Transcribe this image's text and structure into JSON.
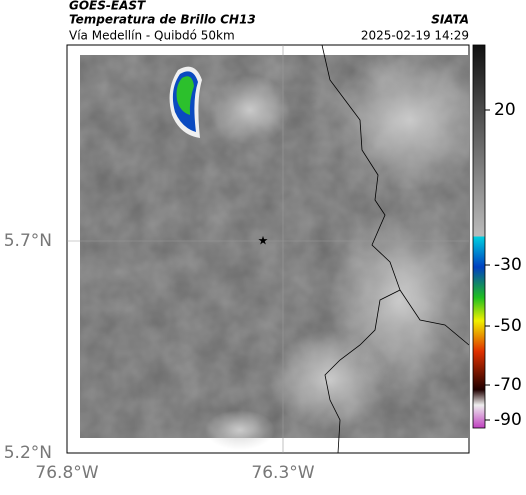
{
  "header": {
    "title": "GOES-EAST",
    "subtitle": "Temperatura de Brillo CH13",
    "source": "SIATA",
    "route": "Vía Medellín - Quibdó 50km",
    "timestamp": "2025-02-19 14:29"
  },
  "map": {
    "lat_labels": [
      "5.7°N",
      "5.2°N"
    ],
    "lon_labels": [
      "76.8°W",
      "76.3°W"
    ]
  },
  "colorbar": {
    "ticks": [
      20,
      -30,
      -50,
      -70,
      -90
    ]
  }
}
